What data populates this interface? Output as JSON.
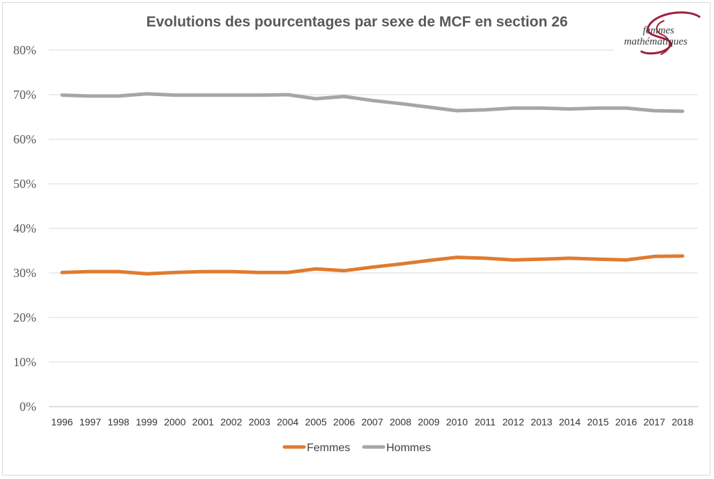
{
  "chart_data": {
    "type": "line",
    "title": "Evolutions des pourcentages par sexe de MCF en section 26",
    "xlabel": "",
    "ylabel": "",
    "categories": [
      "1996",
      "1997",
      "1998",
      "1999",
      "2000",
      "2001",
      "2002",
      "2003",
      "2004",
      "2005",
      "2006",
      "2007",
      "2008",
      "2009",
      "2010",
      "2011",
      "2012",
      "2013",
      "2014",
      "2015",
      "2016",
      "2017",
      "2018"
    ],
    "ylim": [
      0,
      80
    ],
    "yticks": [
      0,
      10,
      20,
      30,
      40,
      50,
      60,
      70,
      80
    ],
    "ytick_labels": [
      "0%",
      "10%",
      "20%",
      "30%",
      "40%",
      "50%",
      "60%",
      "70%",
      "80%"
    ],
    "grid": true,
    "legend_position": "bottom",
    "series": [
      {
        "name": "Femmes",
        "color": "#E07B2F",
        "values": [
          30.1,
          30.3,
          30.3,
          29.8,
          30.1,
          30.3,
          30.3,
          30.1,
          30.1,
          30.9,
          30.5,
          31.3,
          32.0,
          32.8,
          33.5,
          33.3,
          32.9,
          33.1,
          33.3,
          33.1,
          32.9,
          33.7,
          33.8
        ]
      },
      {
        "name": "Hommes",
        "color": "#A6A6A6",
        "values": [
          69.9,
          69.7,
          69.7,
          70.2,
          69.9,
          69.9,
          69.9,
          69.9,
          70.0,
          69.1,
          69.6,
          68.7,
          68.0,
          67.2,
          66.4,
          66.6,
          67.0,
          67.0,
          66.8,
          67.0,
          67.0,
          66.4,
          66.3
        ]
      }
    ]
  },
  "logo": {
    "line1": "femmes",
    "line2": "mathématiques",
    "color": "#A01E3C"
  }
}
